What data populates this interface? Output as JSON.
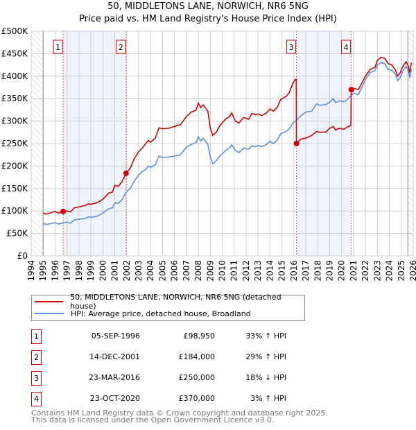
{
  "title_line1": "50, MIDDLETONS LANE, NORWICH, NR6 5NG",
  "title_line2": "Price paid vs. HM Land Registry's House Price Index (HPI)",
  "legend": [
    {
      "label": "50, MIDDLETONS LANE, NORWICH, NR6 5NG (detached house)",
      "color": "#cc0000"
    },
    {
      "label": "HPI: Average price, detached house, Broadland",
      "color": "#5b8fd4"
    }
  ],
  "sales": [
    {
      "num": "1",
      "date": "05-SEP-1996",
      "price": "£98,950",
      "hpi": "33% ↑ HPI"
    },
    {
      "num": "2",
      "date": "14-DEC-2001",
      "price": "£184,000",
      "hpi": "29% ↑ HPI"
    },
    {
      "num": "3",
      "date": "23-MAR-2016",
      "price": "£250,000",
      "hpi": "18% ↓ HPI"
    },
    {
      "num": "4",
      "date": "23-OCT-2020",
      "price": "£370,000",
      "hpi": "3% ↑ HPI"
    }
  ],
  "footer_line1": "Contains HM Land Registry data © Crown copyright and database right 2025.",
  "footer_line2": "This data is licensed under the Open Government Licence v3.0.",
  "chart_data": {
    "type": "line",
    "xlim": [
      1994,
      2026
    ],
    "ylim": [
      0,
      500000
    ],
    "x_ticks": [
      "1994",
      "1995",
      "1996",
      "1997",
      "1998",
      "1999",
      "2000",
      "2001",
      "2002",
      "2003",
      "2004",
      "2005",
      "2006",
      "2007",
      "2008",
      "2009",
      "2010",
      "2011",
      "2012",
      "2013",
      "2014",
      "2015",
      "2016",
      "2017",
      "2018",
      "2019",
      "2020",
      "2021",
      "2022",
      "2023",
      "2024",
      "2025",
      "2026"
    ],
    "y_ticks": [
      {
        "v": 0,
        "label": "£0"
      },
      {
        "v": 50000,
        "label": "£50K"
      },
      {
        "v": 100000,
        "label": "£100K"
      },
      {
        "v": 150000,
        "label": "£150K"
      },
      {
        "v": 200000,
        "label": "£200K"
      },
      {
        "v": 250000,
        "label": "£250K"
      },
      {
        "v": 300000,
        "label": "£300K"
      },
      {
        "v": 350000,
        "label": "£350K"
      },
      {
        "v": 400000,
        "label": "£400K"
      },
      {
        "v": 450000,
        "label": "£450K"
      },
      {
        "v": 500000,
        "label": "£500K"
      }
    ],
    "data_range": [
      1995,
      2025.55
    ],
    "shaded_periods": [
      [
        1996.68,
        2001.95
      ],
      [
        2016.22,
        2020.81
      ]
    ],
    "sale_points": [
      {
        "x": 1996.68,
        "y": 98950,
        "label": "1"
      },
      {
        "x": 2001.95,
        "y": 184000,
        "label": "2"
      },
      {
        "x": 2016.22,
        "y": 250000,
        "label": "3"
      },
      {
        "x": 2020.81,
        "y": 370000,
        "label": "4"
      }
    ],
    "series": [
      {
        "name": "price_paid",
        "color": "#cc0000",
        "points": [
          [
            1995,
            95
          ],
          [
            1995.3,
            93
          ],
          [
            1996,
            99
          ],
          [
            1996.3,
            95
          ],
          [
            1996.68,
            99
          ],
          [
            1997,
            100
          ],
          [
            1997.3,
            98
          ],
          [
            1997.6,
            107
          ],
          [
            1998,
            109
          ],
          [
            1998.5,
            112
          ],
          [
            1998.8,
            116
          ],
          [
            1999,
            115
          ],
          [
            1999.5,
            118
          ],
          [
            2000,
            126
          ],
          [
            2000.5,
            140
          ],
          [
            2000.8,
            142
          ],
          [
            2001,
            157
          ],
          [
            2001.3,
            155
          ],
          [
            2001.6,
            165
          ],
          [
            2001.95,
            184
          ],
          [
            2002.3,
            195
          ],
          [
            2002.6,
            215
          ],
          [
            2003,
            232
          ],
          [
            2003.3,
            240
          ],
          [
            2003.6,
            250
          ],
          [
            2003.8,
            257
          ],
          [
            2004,
            253
          ],
          [
            2004.4,
            262
          ],
          [
            2004.7,
            285
          ],
          [
            2005,
            283
          ],
          [
            2005.5,
            284
          ],
          [
            2006,
            288
          ],
          [
            2006.5,
            292
          ],
          [
            2007,
            310
          ],
          [
            2007.4,
            320
          ],
          [
            2007.8,
            324
          ],
          [
            2008,
            340
          ],
          [
            2008.2,
            330
          ],
          [
            2008.4,
            336
          ],
          [
            2008.8,
            322
          ],
          [
            2009,
            285
          ],
          [
            2009.2,
            268
          ],
          [
            2009.5,
            275
          ],
          [
            2009.8,
            290
          ],
          [
            2010.3,
            305
          ],
          [
            2010.6,
            310
          ],
          [
            2010.8,
            318
          ],
          [
            2011.1,
            300
          ],
          [
            2011.4,
            296
          ],
          [
            2011.8,
            308
          ],
          [
            2012.2,
            304
          ],
          [
            2012.5,
            317
          ],
          [
            2012.8,
            314
          ],
          [
            2013,
            316
          ],
          [
            2013.3,
            312
          ],
          [
            2013.7,
            318
          ],
          [
            2014,
            327
          ],
          [
            2014.3,
            322
          ],
          [
            2014.6,
            330
          ],
          [
            2014.9,
            348
          ],
          [
            2015.3,
            354
          ],
          [
            2015.6,
            362
          ],
          [
            2015.9,
            383
          ],
          [
            2016.1,
            392
          ],
          [
            2016.2,
            393
          ],
          [
            2016.22,
            250
          ],
          [
            2016.6,
            260
          ],
          [
            2017,
            262
          ],
          [
            2017.5,
            268
          ],
          [
            2017.9,
            277
          ],
          [
            2018.2,
            275
          ],
          [
            2018.7,
            276
          ],
          [
            2019,
            284
          ],
          [
            2019.3,
            288
          ],
          [
            2019.5,
            280
          ],
          [
            2019.8,
            284
          ],
          [
            2020.2,
            282
          ],
          [
            2020.5,
            287
          ],
          [
            2020.78,
            291
          ],
          [
            2020.81,
            370
          ],
          [
            2021,
            373
          ],
          [
            2021.4,
            370
          ],
          [
            2021.7,
            385
          ],
          [
            2022,
            400
          ],
          [
            2022.4,
            415
          ],
          [
            2022.8,
            420
          ],
          [
            2023,
            435
          ],
          [
            2023.3,
            442
          ],
          [
            2023.6,
            440
          ],
          [
            2023.9,
            428
          ],
          [
            2024.2,
            425
          ],
          [
            2024.5,
            414
          ],
          [
            2024.7,
            400
          ],
          [
            2024.9,
            407
          ],
          [
            2025.1,
            420
          ],
          [
            2025.4,
            432
          ],
          [
            2025.6,
            422
          ],
          [
            2025.7,
            408
          ],
          [
            2025.85,
            430
          ]
        ]
      },
      {
        "name": "hpi",
        "color": "#5b8fd4",
        "points": [
          [
            1995,
            72
          ],
          [
            1995.3,
            70
          ],
          [
            1996,
            74
          ],
          [
            1996.3,
            71
          ],
          [
            1996.68,
            74
          ],
          [
            1997,
            75
          ],
          [
            1997.3,
            73
          ],
          [
            1997.6,
            80
          ],
          [
            1998,
            82
          ],
          [
            1998.5,
            83
          ],
          [
            1998.8,
            87
          ],
          [
            1999,
            86
          ],
          [
            1999.5,
            88
          ],
          [
            2000,
            95
          ],
          [
            2000.5,
            105
          ],
          [
            2000.8,
            107
          ],
          [
            2001,
            118
          ],
          [
            2001.3,
            117
          ],
          [
            2001.6,
            125
          ],
          [
            2001.95,
            142
          ],
          [
            2002.3,
            150
          ],
          [
            2002.6,
            165
          ],
          [
            2003,
            180
          ],
          [
            2003.3,
            188
          ],
          [
            2003.6,
            192
          ],
          [
            2003.8,
            200
          ],
          [
            2004,
            197
          ],
          [
            2004.4,
            203
          ],
          [
            2004.7,
            222
          ],
          [
            2005,
            219
          ],
          [
            2005.5,
            220
          ],
          [
            2006,
            222
          ],
          [
            2006.5,
            225
          ],
          [
            2007,
            242
          ],
          [
            2007.4,
            248
          ],
          [
            2007.8,
            252
          ],
          [
            2008,
            265
          ],
          [
            2008.2,
            256
          ],
          [
            2008.4,
            262
          ],
          [
            2008.8,
            248
          ],
          [
            2009,
            220
          ],
          [
            2009.2,
            205
          ],
          [
            2009.5,
            212
          ],
          [
            2009.8,
            222
          ],
          [
            2010.3,
            235
          ],
          [
            2010.6,
            240
          ],
          [
            2010.8,
            247
          ],
          [
            2011.1,
            235
          ],
          [
            2011.4,
            230
          ],
          [
            2011.8,
            240
          ],
          [
            2012.2,
            237
          ],
          [
            2012.5,
            245
          ],
          [
            2012.8,
            243
          ],
          [
            2013,
            246
          ],
          [
            2013.3,
            243
          ],
          [
            2013.7,
            248
          ],
          [
            2014,
            255
          ],
          [
            2014.3,
            250
          ],
          [
            2014.6,
            257
          ],
          [
            2014.9,
            272
          ],
          [
            2015.3,
            276
          ],
          [
            2015.6,
            282
          ],
          [
            2015.9,
            295
          ],
          [
            2016.22,
            302
          ],
          [
            2016.6,
            312
          ],
          [
            2017,
            320
          ],
          [
            2017.5,
            322
          ],
          [
            2017.9,
            338
          ],
          [
            2018.2,
            335
          ],
          [
            2018.7,
            337
          ],
          [
            2019,
            342
          ],
          [
            2019.3,
            350
          ],
          [
            2019.5,
            341
          ],
          [
            2019.8,
            345
          ],
          [
            2020.2,
            343
          ],
          [
            2020.5,
            348
          ],
          [
            2020.81,
            358
          ],
          [
            2021,
            362
          ],
          [
            2021.4,
            359
          ],
          [
            2021.7,
            375
          ],
          [
            2022,
            392
          ],
          [
            2022.4,
            408
          ],
          [
            2022.8,
            412
          ],
          [
            2023,
            425
          ],
          [
            2023.3,
            430
          ],
          [
            2023.6,
            428
          ],
          [
            2023.9,
            415
          ],
          [
            2024.2,
            413
          ],
          [
            2024.5,
            405
          ],
          [
            2024.7,
            390
          ],
          [
            2024.9,
            397
          ],
          [
            2025.1,
            410
          ],
          [
            2025.4,
            422
          ],
          [
            2025.6,
            412
          ],
          [
            2025.7,
            396
          ],
          [
            2025.85,
            415
          ]
        ]
      }
    ],
    "point_units": "thousand GBP"
  }
}
